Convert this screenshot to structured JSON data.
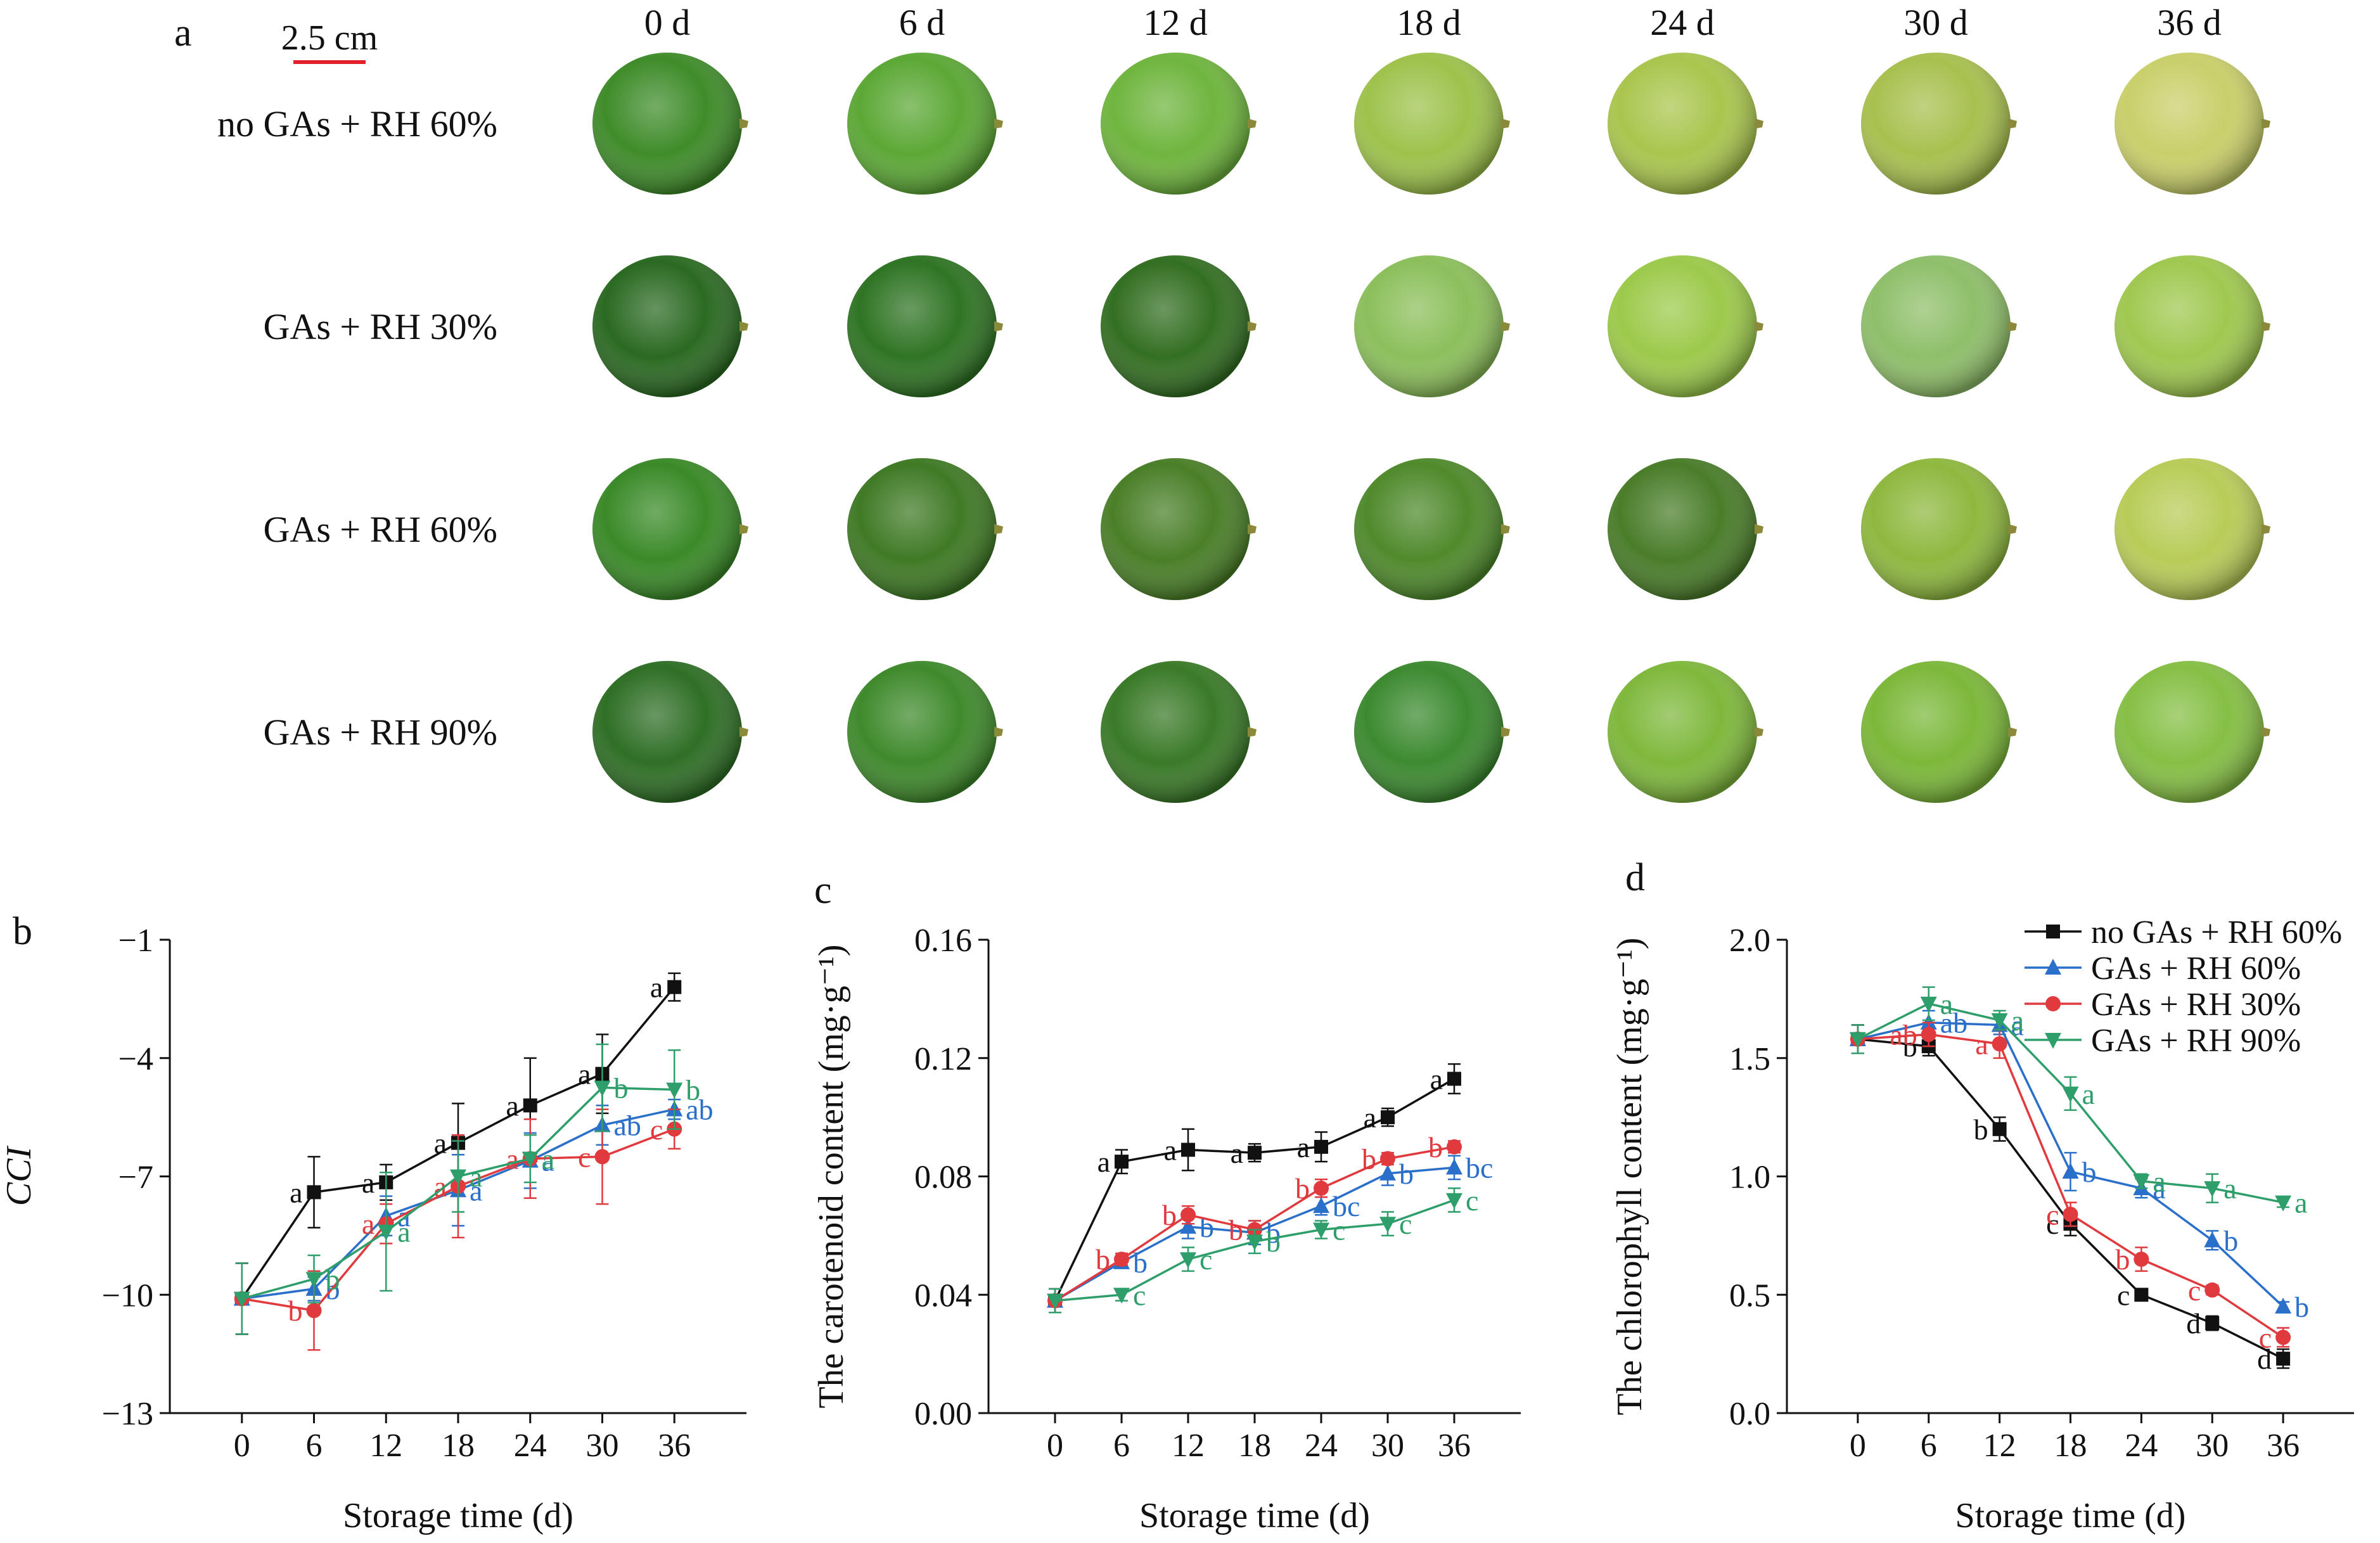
{
  "photo_panel": {
    "panel_label": "a",
    "scale_bar_label": "2.5 cm",
    "day_labels": [
      "0 d",
      "6 d",
      "12 d",
      "18 d",
      "24 d",
      "30 d",
      "36 d"
    ],
    "row_labels": [
      "no GAs + RH 60%",
      "GAs + RH 30%",
      "GAs + RH 60%",
      "GAs + RH 90%"
    ],
    "fruit_colors": [
      [
        "#3f8c2a",
        "#5ca836",
        "#6fb53e",
        "#9ec24c",
        "#a9c64e",
        "#a8c04f",
        "#c9cf6a"
      ],
      [
        "#2b6a22",
        "#2f7424",
        "#336f22",
        "#8cbf5b",
        "#9cca4b",
        "#8fbf6a",
        "#a0c850"
      ],
      [
        "#3a8a28",
        "#3f7a25",
        "#4a7f28",
        "#4f8a2c",
        "#4a7d2a",
        "#8fb83f",
        "#b8cc58"
      ],
      [
        "#2f6f26",
        "#3f8a2c",
        "#3a7a28",
        "#3c8a30",
        "#7fb83c",
        "#7cb83a",
        "#86bf45"
      ]
    ]
  },
  "chart_data": [
    {
      "panel_label": "b",
      "type": "line",
      "title": "",
      "xlabel": "Storage time (d)",
      "ylabel": "CCI",
      "x": [
        0,
        6,
        12,
        18,
        24,
        30,
        36
      ],
      "xticks": [
        "0",
        "6",
        "12",
        "18",
        "24",
        "30",
        "36"
      ],
      "ylim": [
        -13,
        -1
      ],
      "yticks": [
        "−1",
        "−4",
        "−7",
        "−10",
        "−13"
      ],
      "ytick_values": [
        -1,
        -4,
        -7,
        -10,
        -13
      ],
      "series": [
        {
          "name": "no GAs + RH 60%",
          "color": "#111111",
          "marker": "square",
          "values": [
            -10.1,
            -7.4,
            -7.15,
            -6.15,
            -5.2,
            -4.4,
            -2.2
          ],
          "errors": [
            0.9,
            0.9,
            0.45,
            1.0,
            1.2,
            1.0,
            0.35
          ],
          "letters": [
            "",
            "a",
            "a",
            "a",
            "a",
            "a",
            "a"
          ]
        },
        {
          "name": "GAs + RH 60%",
          "color": "#2a6fc9",
          "marker": "triangle-up",
          "values": [
            -10.1,
            -9.85,
            -8.0,
            -7.35,
            -6.6,
            -5.7,
            -5.3
          ],
          "errors": [
            0.9,
            0.3,
            0.5,
            0.9,
            0.7,
            0.5,
            0.25
          ],
          "letters": [
            "",
            "b",
            "a",
            "a",
            "a",
            "ab",
            "ab"
          ]
        },
        {
          "name": "GAs + RH 30%",
          "color": "#e0393e",
          "marker": "circle",
          "values": [
            -10.1,
            -10.4,
            -8.2,
            -7.25,
            -6.55,
            -6.5,
            -5.8
          ],
          "errors": [
            0.9,
            1.0,
            0.5,
            1.3,
            1.0,
            1.2,
            0.5
          ],
          "letters": [
            "",
            "b",
            "a",
            "a",
            "a",
            "c",
            "c"
          ]
        },
        {
          "name": "GAs + RH 90%",
          "color": "#2e9e6a",
          "marker": "triangle-down",
          "values": [
            -10.1,
            -9.6,
            -8.4,
            -7.0,
            -6.55,
            -4.75,
            -4.8
          ],
          "errors": [
            0.9,
            0.6,
            1.5,
            0.9,
            0.6,
            1.1,
            1.0
          ],
          "letters": [
            "",
            "b",
            "a",
            "a",
            "a",
            "b",
            "b"
          ]
        }
      ]
    },
    {
      "panel_label": "c",
      "type": "line",
      "title": "",
      "xlabel": "Storage time (d)",
      "ylabel": "The carotenoid content (mg·g⁻¹)",
      "x": [
        0,
        6,
        12,
        18,
        24,
        30,
        36
      ],
      "xticks": [
        "0",
        "6",
        "12",
        "18",
        "24",
        "30",
        "36"
      ],
      "ylim": [
        0,
        0.16
      ],
      "yticks": [
        "0.00",
        "0.04",
        "0.08",
        "0.12",
        "0.16"
      ],
      "ytick_values": [
        0,
        0.04,
        0.08,
        0.12,
        0.16
      ],
      "series": [
        {
          "name": "no GAs + RH 60%",
          "color": "#111111",
          "marker": "square",
          "values": [
            0.038,
            0.085,
            0.089,
            0.088,
            0.09,
            0.1,
            0.113
          ],
          "errors": [
            0.004,
            0.004,
            0.007,
            0.003,
            0.005,
            0.003,
            0.005
          ],
          "letters": [
            "",
            "a",
            "a",
            "a",
            "a",
            "a",
            "a"
          ]
        },
        {
          "name": "GAs + RH 60%",
          "color": "#2a6fc9",
          "marker": "triangle-up",
          "values": [
            0.038,
            0.051,
            0.063,
            0.061,
            0.07,
            0.081,
            0.083
          ],
          "errors": [
            0.004,
            0.002,
            0.004,
            0.004,
            0.003,
            0.004,
            0.004
          ],
          "letters": [
            "",
            "b",
            "b",
            "b",
            "bc",
            "b",
            "bc"
          ]
        },
        {
          "name": "GAs + RH 30%",
          "color": "#e0393e",
          "marker": "circle",
          "values": [
            0.038,
            0.052,
            0.067,
            0.062,
            0.076,
            0.086,
            0.09
          ],
          "errors": [
            0.004,
            0.002,
            0.003,
            0.003,
            0.003,
            0.002,
            0.002
          ],
          "letters": [
            "",
            "b",
            "b",
            "b",
            "b",
            "b",
            "b"
          ]
        },
        {
          "name": "GAs + RH 90%",
          "color": "#2e9e6a",
          "marker": "triangle-down",
          "values": [
            0.038,
            0.04,
            0.052,
            0.058,
            0.062,
            0.064,
            0.072
          ],
          "errors": [
            0.004,
            0.002,
            0.004,
            0.004,
            0.003,
            0.004,
            0.004
          ],
          "letters": [
            "",
            "c",
            "c",
            "b",
            "c",
            "c",
            "c"
          ]
        }
      ]
    },
    {
      "panel_label": "d",
      "type": "line",
      "title": "",
      "xlabel": "Storage time (d)",
      "ylabel": "The chlorophyll content (mg·g⁻¹)",
      "x": [
        0,
        6,
        12,
        18,
        24,
        30,
        36
      ],
      "xticks": [
        "0",
        "6",
        "12",
        "18",
        "24",
        "30",
        "36"
      ],
      "ylim": [
        0,
        2.0
      ],
      "yticks": [
        "0.0",
        "0.5",
        "1.0",
        "1.5",
        "2.0"
      ],
      "ytick_values": [
        0,
        0.5,
        1.0,
        1.5,
        2.0
      ],
      "legend_position": "top-right",
      "series": [
        {
          "name": "no GAs + RH 60%",
          "color": "#111111",
          "marker": "square",
          "values": [
            1.58,
            1.55,
            1.2,
            0.8,
            0.5,
            0.38,
            0.23
          ],
          "errors": [
            0.06,
            0.04,
            0.05,
            0.05,
            0.02,
            0.03,
            0.04
          ],
          "letters": [
            "",
            "b",
            "b",
            "c",
            "c",
            "d",
            "d"
          ]
        },
        {
          "name": "GAs + RH 60%",
          "color": "#2a6fc9",
          "marker": "triangle-up",
          "values": [
            1.58,
            1.65,
            1.64,
            1.02,
            0.95,
            0.73,
            0.45
          ],
          "errors": [
            0.06,
            0.05,
            0.04,
            0.08,
            0.04,
            0.04,
            0.02
          ],
          "letters": [
            "",
            "ab",
            "a",
            "b",
            "a",
            "b",
            "b"
          ]
        },
        {
          "name": "GAs + RH 30%",
          "color": "#e0393e",
          "marker": "circle",
          "values": [
            1.58,
            1.6,
            1.56,
            0.84,
            0.65,
            0.52,
            0.32
          ],
          "errors": [
            0.06,
            0.05,
            0.06,
            0.05,
            0.05,
            0.02,
            0.04
          ],
          "letters": [
            "",
            "ab",
            "a",
            "c",
            "b",
            "c",
            "c"
          ]
        },
        {
          "name": "GAs + RH 90%",
          "color": "#2e9e6a",
          "marker": "triangle-down",
          "values": [
            1.58,
            1.73,
            1.66,
            1.35,
            0.98,
            0.95,
            0.89
          ],
          "errors": [
            0.06,
            0.07,
            0.04,
            0.07,
            0.03,
            0.06,
            0.02
          ],
          "letters": [
            "",
            "a",
            "a",
            "a",
            "a",
            "a",
            "a"
          ]
        }
      ]
    }
  ]
}
